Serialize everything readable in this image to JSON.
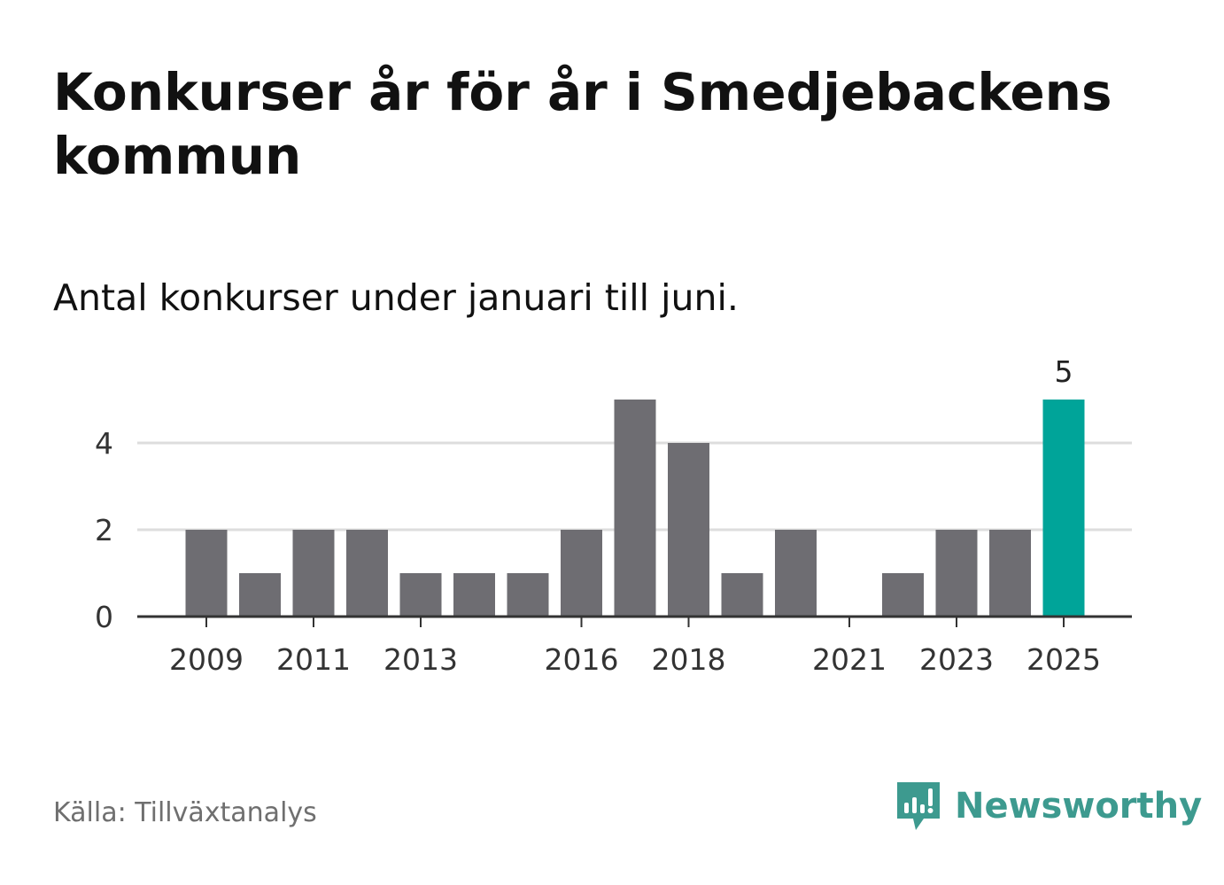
{
  "header": {
    "title": "Konkurser år för år i Smedjebackens kommun",
    "subtitle": "Antal konkurser under januari till juni."
  },
  "footer": {
    "source": "Källa: Tillväxtanalys",
    "brand_name": "Newsworthy",
    "brand_icon": "newsworthy-logo-icon"
  },
  "colors": {
    "bar": "#6e6d72",
    "highlight": "#00a499",
    "grid": "#dddddd",
    "axis": "#333333",
    "brand": "#3d9a8f"
  },
  "chart_data": {
    "type": "bar",
    "categories": [
      "2009",
      "2010",
      "2011",
      "2012",
      "2013",
      "2014",
      "2015",
      "2016",
      "2017",
      "2018",
      "2019",
      "2020",
      "2021",
      "2022",
      "2023",
      "2024",
      "2025"
    ],
    "values": [
      2,
      1,
      2,
      2,
      1,
      1,
      1,
      2,
      5,
      4,
      1,
      2,
      0,
      1,
      2,
      2,
      5
    ],
    "highlight_category": "2025",
    "data_labels": [
      {
        "category": "2025",
        "label": "5"
      }
    ],
    "x_tick_labels": [
      "2009",
      "2011",
      "2013",
      "2016",
      "2018",
      "2021",
      "2023",
      "2025"
    ],
    "y_ticks": [
      0,
      2,
      4
    ],
    "ylim": [
      0,
      5
    ],
    "grid": true,
    "legend": "none",
    "title": "",
    "xlabel": "",
    "ylabel": ""
  }
}
